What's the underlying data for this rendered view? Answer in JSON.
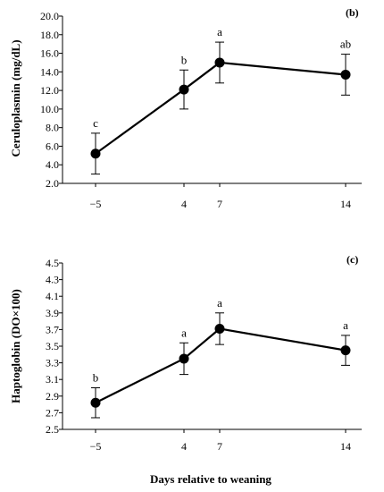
{
  "chart_data": [
    {
      "type": "line",
      "panel_label": "(b)",
      "ylabel": "Ceruloplasmin (mg/dL)",
      "xlabel": "",
      "x_ticks": [
        "−5",
        "4",
        "7",
        "14"
      ],
      "x": [
        -5,
        4,
        7,
        14
      ],
      "ylim": [
        2.0,
        20.0
      ],
      "y_ticks": [
        "2.0",
        "4.0",
        "6.0",
        "8.0",
        "10.0",
        "12.0",
        "14.0",
        "16.0",
        "18.0",
        "20.0"
      ],
      "y_tick_values": [
        2,
        4,
        6,
        8,
        10,
        12,
        14,
        16,
        18,
        20
      ],
      "series": [
        {
          "values": [
            5.2,
            12.1,
            15.0,
            13.7
          ],
          "error": [
            2.2,
            2.1,
            2.2,
            2.2
          ],
          "letters": [
            "c",
            "b",
            "a",
            "ab"
          ]
        }
      ]
    },
    {
      "type": "line",
      "panel_label": "(c)",
      "ylabel": "Haptoglobin (DO×100)",
      "xlabel": "Days relative to weaning",
      "x_ticks": [
        "−5",
        "4",
        "7",
        "14"
      ],
      "x": [
        -5,
        4,
        7,
        14
      ],
      "ylim": [
        2.5,
        4.5
      ],
      "y_ticks": [
        "2.5",
        "2.7",
        "2.9",
        "3.1",
        "3.3",
        "3.5",
        "3.7",
        "3.9",
        "4.1",
        "4.3",
        "4.5"
      ],
      "y_tick_values": [
        2.5,
        2.7,
        2.9,
        3.1,
        3.3,
        3.5,
        3.7,
        3.9,
        4.1,
        4.3,
        4.5
      ],
      "series": [
        {
          "values": [
            2.82,
            3.35,
            3.71,
            3.45
          ],
          "error": [
            0.18,
            0.19,
            0.19,
            0.18
          ],
          "letters": [
            "b",
            "a",
            "a",
            "a"
          ]
        }
      ]
    }
  ]
}
